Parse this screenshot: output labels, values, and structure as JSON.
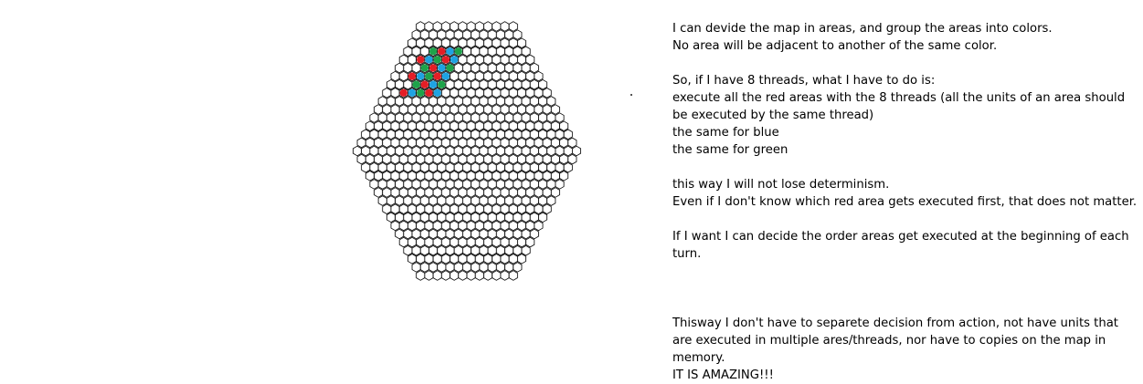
{
  "hex_map": {
    "line_color": "#000000",
    "fill_color": "#ffffff",
    "area_colors": {
      "red": "#e41e26",
      "blue": "#1fa3e2",
      "green": "#1ea34a"
    },
    "rows": 31,
    "top_row_count": 12,
    "middle_row_count": 27,
    "colored_cells": [
      {
        "row": 3,
        "col": 3,
        "color": "green"
      },
      {
        "row": 3,
        "col": 4,
        "color": "red"
      },
      {
        "row": 3,
        "col": 5,
        "color": "blue"
      },
      {
        "row": 3,
        "col": 6,
        "color": "green"
      },
      {
        "row": 4,
        "col": 2,
        "color": "red"
      },
      {
        "row": 4,
        "col": 3,
        "color": "blue"
      },
      {
        "row": 4,
        "col": 4,
        "color": "green"
      },
      {
        "row": 4,
        "col": 5,
        "color": "red"
      },
      {
        "row": 4,
        "col": 6,
        "color": "blue"
      },
      {
        "row": 5,
        "col": 3,
        "color": "green"
      },
      {
        "row": 5,
        "col": 4,
        "color": "red"
      },
      {
        "row": 5,
        "col": 5,
        "color": "blue"
      },
      {
        "row": 5,
        "col": 6,
        "color": "green"
      },
      {
        "row": 6,
        "col": 2,
        "color": "red"
      },
      {
        "row": 6,
        "col": 3,
        "color": "blue"
      },
      {
        "row": 6,
        "col": 4,
        "color": "green"
      },
      {
        "row": 6,
        "col": 5,
        "color": "red"
      },
      {
        "row": 6,
        "col": 6,
        "color": "blue"
      },
      {
        "row": 7,
        "col": 3,
        "color": "green"
      },
      {
        "row": 7,
        "col": 4,
        "color": "red"
      },
      {
        "row": 7,
        "col": 5,
        "color": "blue"
      },
      {
        "row": 7,
        "col": 6,
        "color": "green"
      },
      {
        "row": 8,
        "col": 2,
        "color": "red"
      },
      {
        "row": 8,
        "col": 3,
        "color": "blue"
      },
      {
        "row": 8,
        "col": 4,
        "color": "green"
      },
      {
        "row": 8,
        "col": 5,
        "color": "red"
      },
      {
        "row": 8,
        "col": 6,
        "color": "blue"
      }
    ]
  },
  "notes": {
    "p1_line1": "I can devide the map in areas, and group the areas into colors.",
    "p1_line2": "No area will be adjacent to another of the same color.",
    "p2_line1": "So, if I have 8 threads, what I have to do is:",
    "p2_line2": "execute all the red areas with the 8 threads (all the units of an area should be executed by the same thread)",
    "p2_line3": "the same for blue",
    "p2_line4": "the same for green",
    "p3_line1": "this way I will not lose determinism.",
    "p3_line2": "Even if I don't know which red area gets executed first, that does not matter.",
    "p4_line1": "If I want I can decide the order areas get executed at the beginning of each turn.",
    "p5_line1": "Thisway I don't have to separete decision from action, not have units that are executed in multiple ares/threads, nor have to copies on the map in memory.",
    "p5_line2": "IT IS AMAZING!!!"
  }
}
